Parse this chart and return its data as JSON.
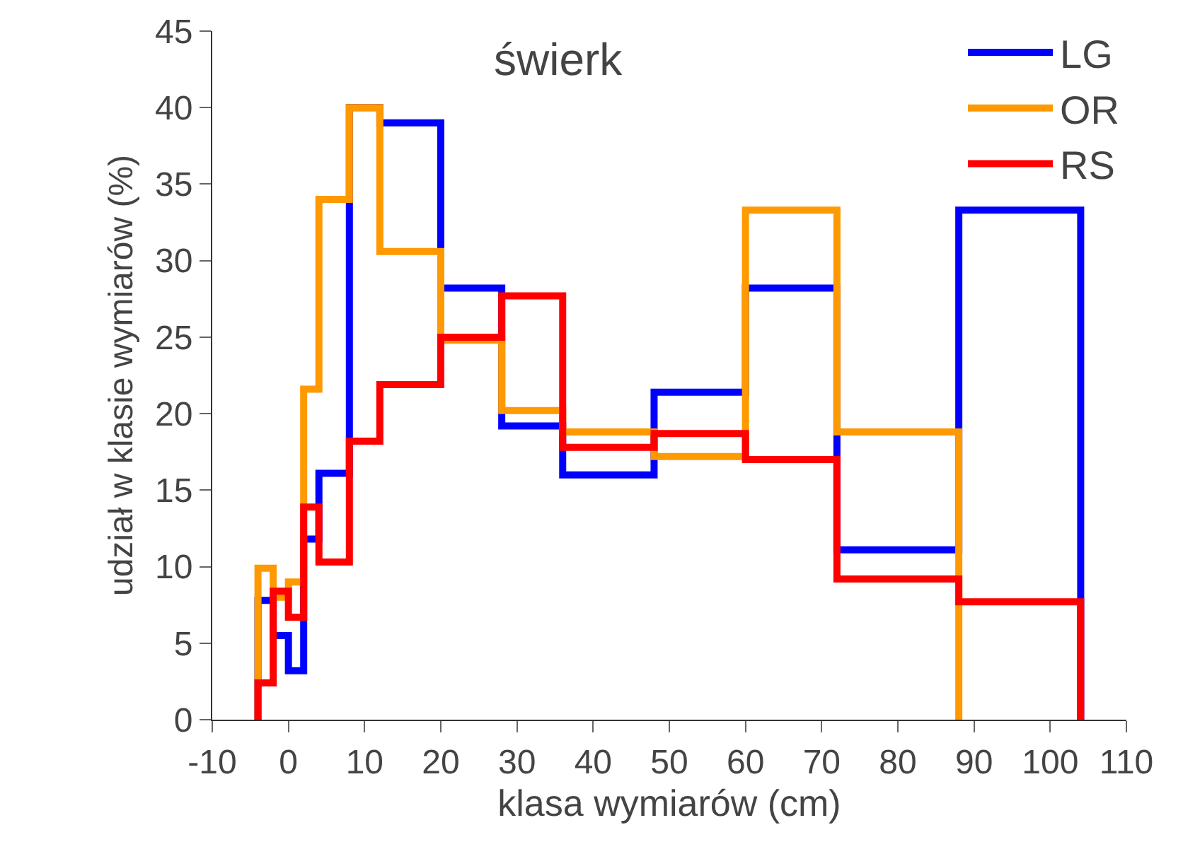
{
  "chart_data": {
    "type": "histogram",
    "title": "świerk",
    "xlabel": "klasa wymiarów (cm)",
    "ylabel": "udział w klasie wymiarów (%)",
    "bins": [
      -4,
      -2,
      0,
      2,
      4,
      8,
      12,
      20,
      28,
      36,
      48,
      60,
      72,
      88,
      104
    ],
    "series": [
      {
        "name": "LG",
        "color": "#0000ff",
        "values": [
          7.8,
          5.5,
          3.2,
          11.8,
          16.1,
          40,
          39,
          28.2,
          19.2,
          16,
          21.4,
          28.2,
          11.1,
          33.3
        ]
      },
      {
        "name": "OR",
        "color": "#ff9900",
        "bins": [
          -4,
          -2,
          0,
          2,
          4,
          8,
          12,
          20,
          28,
          36,
          48,
          60,
          72,
          88
        ],
        "values": [
          9.9,
          8,
          9,
          21.6,
          34,
          40,
          30.6,
          24.8,
          20.2,
          18.8,
          17.2,
          33.3,
          18.8
        ]
      },
      {
        "name": "RS",
        "color": "#ff0000",
        "values": [
          2.4,
          8.4,
          6.7,
          13.9,
          10.3,
          18.2,
          21.9,
          25,
          27.7,
          17.8,
          18.7,
          17,
          9.2,
          7.7
        ]
      }
    ],
    "xlim": [
      -10,
      110
    ],
    "xticks": [
      -10,
      0,
      10,
      20,
      30,
      40,
      50,
      60,
      70,
      80,
      90,
      100,
      110
    ],
    "ylim": [
      0,
      45
    ],
    "yticks": [
      0,
      5,
      10,
      15,
      20,
      25,
      30,
      35,
      40,
      45
    ],
    "legend": "top right",
    "grid": false
  }
}
